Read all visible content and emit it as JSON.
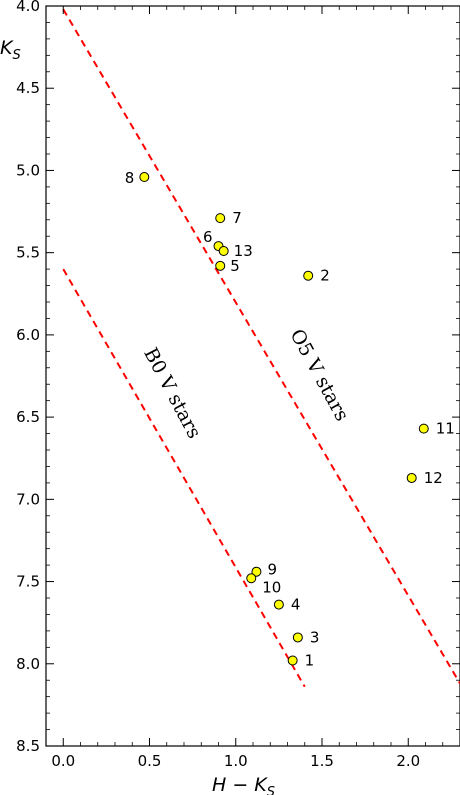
{
  "chart_data": {
    "type": "scatter",
    "xlabel": "H − K",
    "xlabel_sub": "S",
    "ylabel": "K",
    "ylabel_sub": "S",
    "xlim": [
      -0.1,
      2.3
    ],
    "ylim": [
      8.5,
      4.0
    ],
    "y_inverted": true,
    "grid": false,
    "xticks": [
      0.0,
      0.5,
      1.0,
      1.5,
      2.0
    ],
    "xtick_labels": [
      "0.0",
      "0.5",
      "1.0",
      "1.5",
      "2.0"
    ],
    "yticks": [
      4.0,
      4.5,
      5.0,
      5.5,
      6.0,
      6.5,
      7.0,
      7.5,
      8.0,
      8.5
    ],
    "ytick_labels": [
      "4.0",
      "4.5",
      "5.0",
      "5.5",
      "6.0",
      "6.5",
      "7.0",
      "7.5",
      "8.0",
      "8.5"
    ],
    "marker_color": "#ffff00",
    "marker_edge": "#000000",
    "line_color": "#ff0000",
    "points": [
      {
        "label": "1",
        "x": 1.33,
        "y": 7.98
      },
      {
        "label": "2",
        "x": 1.42,
        "y": 5.64
      },
      {
        "label": "3",
        "x": 1.36,
        "y": 7.84
      },
      {
        "label": "4",
        "x": 1.25,
        "y": 7.64
      },
      {
        "label": "5",
        "x": 0.91,
        "y": 5.58
      },
      {
        "label": "6",
        "x": 0.9,
        "y": 5.46
      },
      {
        "label": "7",
        "x": 0.91,
        "y": 5.29
      },
      {
        "label": "8",
        "x": 0.47,
        "y": 5.04
      },
      {
        "label": "9",
        "x": 1.12,
        "y": 7.44
      },
      {
        "label": "10",
        "x": 1.09,
        "y": 7.48
      },
      {
        "label": "11",
        "x": 2.09,
        "y": 6.57
      },
      {
        "label": "12",
        "x": 2.02,
        "y": 6.87
      },
      {
        "label": "13",
        "x": 0.93,
        "y": 5.49
      }
    ],
    "lines": [
      {
        "name": "O5 V stars",
        "x": [
          0.0,
          2.3
        ],
        "y": [
          4.02,
          8.12
        ]
      },
      {
        "name": "B0 V stars",
        "x": [
          0.0,
          1.4
        ],
        "y": [
          5.6,
          8.14
        ]
      }
    ]
  }
}
